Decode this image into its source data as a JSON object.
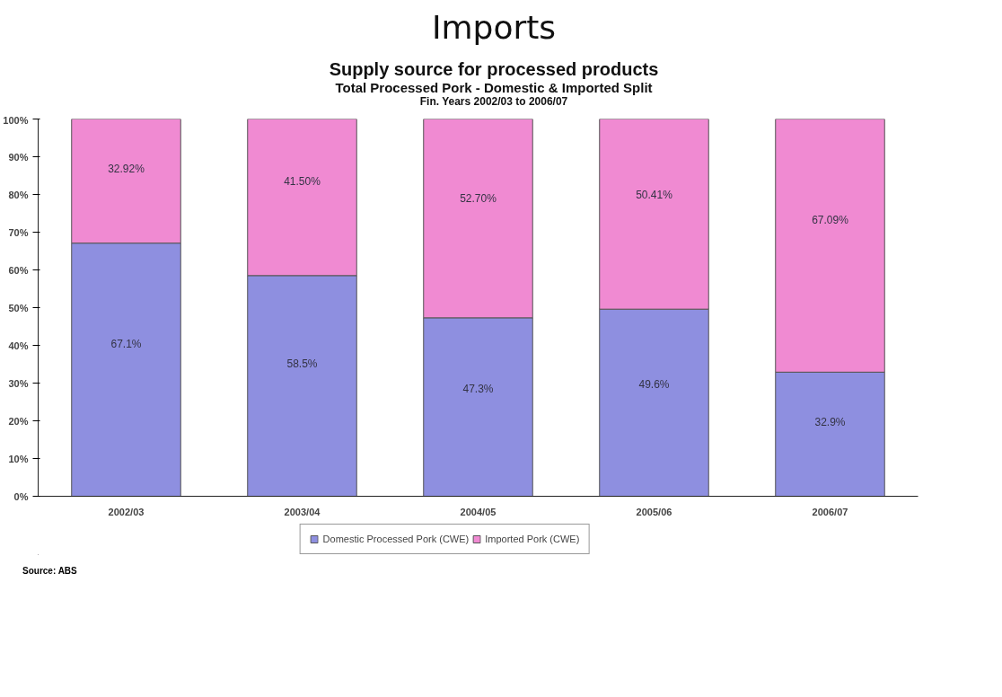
{
  "chart_data": {
    "type": "bar",
    "stacked": true,
    "title": "Imports",
    "subtitle": "Supply source for processed products\nTotal Processed Pork - Domestic & Imported Split\nFin. Years 2002/03 to 2006/07",
    "categories": [
      "2002/03",
      "2003/04",
      "2004/05",
      "2005/06",
      "2006/07"
    ],
    "series": [
      {
        "name": "Domestic Processed Pork (CWE)",
        "color": "#8e8fe0",
        "values": [
          67.1,
          58.5,
          47.3,
          49.6,
          32.9
        ],
        "value_labels": [
          "67.1%",
          "58.5%",
          "47.3%",
          "49.6%",
          "32.9%"
        ]
      },
      {
        "name": "Imported Pork (CWE)",
        "color": "#f08ad2",
        "values": [
          32.92,
          41.5,
          52.7,
          50.41,
          67.09
        ],
        "value_labels": [
          "32.92%",
          "41.50%",
          "52.70%",
          "50.41%",
          "67.09%"
        ]
      }
    ],
    "ylim": [
      0,
      100
    ],
    "yticks": [
      {
        "value": 0,
        "label": "0%"
      },
      {
        "value": 10,
        "label": "10%"
      },
      {
        "value": 20,
        "label": "20%"
      },
      {
        "value": 30,
        "label": "30%"
      },
      {
        "value": 40,
        "label": "40%"
      },
      {
        "value": 50,
        "label": "50%"
      },
      {
        "value": 60,
        "label": "60%"
      },
      {
        "value": 70,
        "label": "70%"
      },
      {
        "value": 80,
        "label": "80%"
      },
      {
        "value": 90,
        "label": "90%"
      },
      {
        "value": 100,
        "label": "100%"
      }
    ],
    "grid": false,
    "legend": "bottom",
    "annotations": [
      "Source: ABS"
    ]
  }
}
